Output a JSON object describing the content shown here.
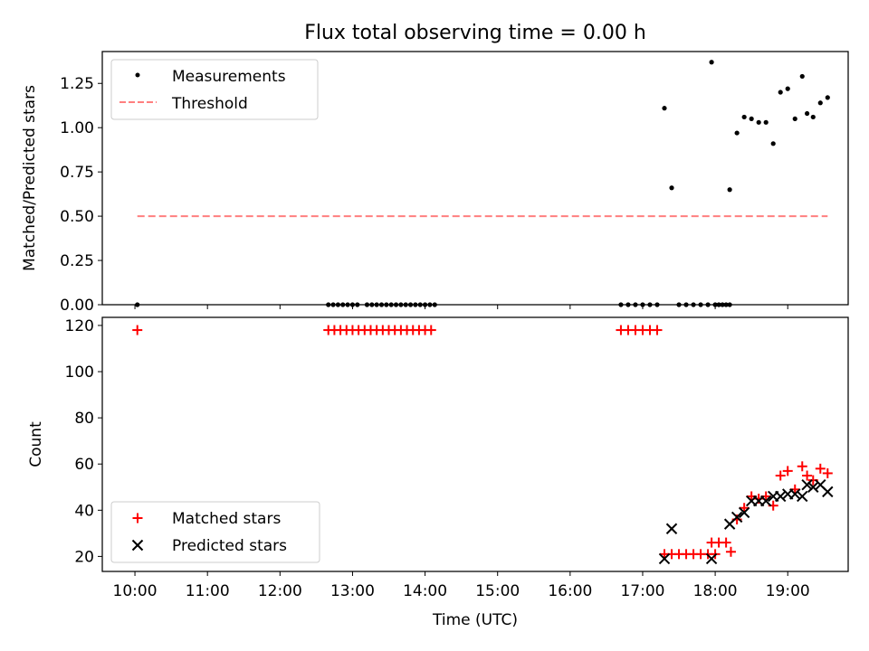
{
  "figure": {
    "title": "Flux total observing time = 0.00 h"
  },
  "chart_data": [
    {
      "type": "scatter",
      "panel": "top",
      "ylabel": "Matched/Predicted stars",
      "xlabel": "",
      "x_range": [
        "09:33",
        "19:50"
      ],
      "ylim": [
        0,
        1.43
      ],
      "yticks": [
        0.0,
        0.25,
        0.5,
        0.75,
        1.0,
        1.25
      ],
      "ytick_labels": [
        "0.00",
        "0.25",
        "0.50",
        "0.75",
        "1.00",
        "1.25"
      ],
      "grid": false,
      "legend_position": "top-left",
      "legend": [
        "Measurements",
        "Threshold"
      ],
      "series": [
        {
          "name": "Measurements",
          "color": "#000000",
          "marker": "dot",
          "points": [
            [
              "10:02",
              0.0
            ],
            [
              "12:40",
              0.0
            ],
            [
              "12:44",
              0.0
            ],
            [
              "12:48",
              0.0
            ],
            [
              "12:52",
              0.0
            ],
            [
              "12:56",
              0.0
            ],
            [
              "13:00",
              0.0
            ],
            [
              "13:04",
              0.0
            ],
            [
              "13:12",
              0.0
            ],
            [
              "13:16",
              0.0
            ],
            [
              "13:20",
              0.0
            ],
            [
              "13:24",
              0.0
            ],
            [
              "13:28",
              0.0
            ],
            [
              "13:32",
              0.0
            ],
            [
              "13:36",
              0.0
            ],
            [
              "13:40",
              0.0
            ],
            [
              "13:44",
              0.0
            ],
            [
              "13:48",
              0.0
            ],
            [
              "13:52",
              0.0
            ],
            [
              "13:56",
              0.0
            ],
            [
              "14:00",
              0.0
            ],
            [
              "14:04",
              0.0
            ],
            [
              "14:08",
              0.0
            ],
            [
              "16:42",
              0.0
            ],
            [
              "16:48",
              0.0
            ],
            [
              "16:54",
              0.0
            ],
            [
              "17:00",
              0.0
            ],
            [
              "17:06",
              0.0
            ],
            [
              "17:12",
              0.0
            ],
            [
              "17:18",
              1.11
            ],
            [
              "17:24",
              0.66
            ],
            [
              "17:30",
              0.0
            ],
            [
              "17:36",
              0.0
            ],
            [
              "17:42",
              0.0
            ],
            [
              "17:48",
              0.0
            ],
            [
              "17:54",
              0.0
            ],
            [
              "18:00",
              0.0
            ],
            [
              "18:06",
              0.0
            ],
            [
              "18:12",
              0.0
            ],
            [
              "17:57",
              1.37
            ],
            [
              "18:03",
              0.0
            ],
            [
              "18:09",
              0.0
            ],
            [
              "18:12",
              0.65
            ],
            [
              "18:18",
              0.97
            ],
            [
              "18:24",
              1.06
            ],
            [
              "18:30",
              1.05
            ],
            [
              "18:36",
              1.03
            ],
            [
              "18:42",
              1.03
            ],
            [
              "18:48",
              0.91
            ],
            [
              "18:54",
              1.2
            ],
            [
              "19:00",
              1.22
            ],
            [
              "19:06",
              1.05
            ],
            [
              "19:12",
              1.29
            ],
            [
              "19:16",
              1.08
            ],
            [
              "19:21",
              1.06
            ],
            [
              "19:27",
              1.14
            ],
            [
              "19:33",
              1.17
            ]
          ]
        },
        {
          "name": "Threshold",
          "color": "#ff7f7f",
          "style": "dashed",
          "x": [
            "10:02",
            "19:33"
          ],
          "y": [
            0.5,
            0.5
          ]
        }
      ]
    },
    {
      "type": "scatter",
      "panel": "bottom",
      "xlabel": "Time (UTC)",
      "ylabel": "Count",
      "x_range": [
        "09:33",
        "19:50"
      ],
      "xticks": [
        "10:00",
        "11:00",
        "12:00",
        "13:00",
        "14:00",
        "15:00",
        "16:00",
        "17:00",
        "18:00",
        "19:00"
      ],
      "ylim": [
        13.5,
        123.5
      ],
      "yticks": [
        20,
        40,
        60,
        80,
        100,
        120
      ],
      "ytick_labels": [
        "20",
        "40",
        "60",
        "80",
        "100",
        "120"
      ],
      "grid": false,
      "legend_position": "bottom-left",
      "legend": [
        "Matched stars",
        "Predicted stars"
      ],
      "series": [
        {
          "name": "Matched stars",
          "color": "#ff0000",
          "marker": "plus",
          "points": [
            [
              "10:02",
              118
            ],
            [
              "12:40",
              118
            ],
            [
              "12:45",
              118
            ],
            [
              "12:50",
              118
            ],
            [
              "12:55",
              118
            ],
            [
              "13:00",
              118
            ],
            [
              "13:05",
              118
            ],
            [
              "13:10",
              118
            ],
            [
              "13:15",
              118
            ],
            [
              "13:20",
              118
            ],
            [
              "13:25",
              118
            ],
            [
              "13:30",
              118
            ],
            [
              "13:35",
              118
            ],
            [
              "13:40",
              118
            ],
            [
              "13:45",
              118
            ],
            [
              "13:50",
              118
            ],
            [
              "13:55",
              118
            ],
            [
              "14:00",
              118
            ],
            [
              "14:05",
              118
            ],
            [
              "16:42",
              118
            ],
            [
              "16:48",
              118
            ],
            [
              "16:54",
              118
            ],
            [
              "17:00",
              118
            ],
            [
              "17:06",
              118
            ],
            [
              "17:12",
              118
            ],
            [
              "17:18",
              21
            ],
            [
              "17:24",
              21
            ],
            [
              "17:30",
              21
            ],
            [
              "17:36",
              21
            ],
            [
              "17:42",
              21
            ],
            [
              "17:48",
              21
            ],
            [
              "17:54",
              21
            ],
            [
              "18:00",
              21
            ],
            [
              "17:57",
              26
            ],
            [
              "18:03",
              26
            ],
            [
              "18:09",
              26
            ],
            [
              "18:13",
              22
            ],
            [
              "18:18",
              36
            ],
            [
              "18:24",
              41
            ],
            [
              "18:30",
              46
            ],
            [
              "18:36",
              45
            ],
            [
              "18:42",
              46
            ],
            [
              "18:48",
              42
            ],
            [
              "18:54",
              55
            ],
            [
              "19:00",
              57
            ],
            [
              "19:06",
              49
            ],
            [
              "19:12",
              59
            ],
            [
              "19:16",
              55
            ],
            [
              "19:21",
              53
            ],
            [
              "19:27",
              58
            ],
            [
              "19:33",
              56
            ]
          ]
        },
        {
          "name": "Predicted stars",
          "color": "#000000",
          "marker": "x",
          "points": [
            [
              "17:18",
              19
            ],
            [
              "17:24",
              32
            ],
            [
              "17:57",
              19
            ],
            [
              "18:12",
              34
            ],
            [
              "18:18",
              37
            ],
            [
              "18:24",
              39
            ],
            [
              "18:30",
              44
            ],
            [
              "18:36",
              44
            ],
            [
              "18:42",
              44
            ],
            [
              "18:48",
              46
            ],
            [
              "18:54",
              46
            ],
            [
              "19:00",
              47
            ],
            [
              "19:06",
              47
            ],
            [
              "19:12",
              46
            ],
            [
              "19:16",
              51
            ],
            [
              "19:21",
              50
            ],
            [
              "19:27",
              51
            ],
            [
              "19:33",
              48
            ]
          ]
        }
      ]
    }
  ]
}
